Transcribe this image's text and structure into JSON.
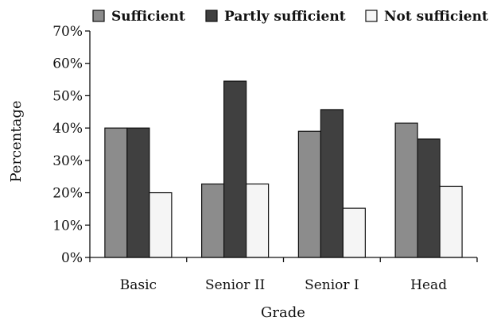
{
  "chart_data": {
    "type": "bar",
    "title": "",
    "xlabel": "Grade",
    "ylabel": "Percentage",
    "categories": [
      "Basic",
      "Senior II",
      "Senior I",
      "Head"
    ],
    "series": [
      {
        "name": "Sufficient",
        "color": "#8c8c8c",
        "values": [
          40,
          22.7,
          39,
          41.5
        ]
      },
      {
        "name": "Partly sufficient",
        "color": "#404040",
        "values": [
          40,
          54.5,
          45.7,
          36.6
        ]
      },
      {
        "name": "Not sufficient",
        "color": "#f5f5f5",
        "values": [
          20,
          22.7,
          15.2,
          22
        ]
      }
    ],
    "ylim": [
      0,
      70
    ],
    "yticks": [
      0,
      10,
      20,
      30,
      40,
      50,
      60,
      70
    ],
    "ytick_labels": [
      "0%",
      "10%",
      "20%",
      "30%",
      "40%",
      "50%",
      "60%",
      "70%"
    ],
    "grid": false,
    "legend_position": "top"
  }
}
